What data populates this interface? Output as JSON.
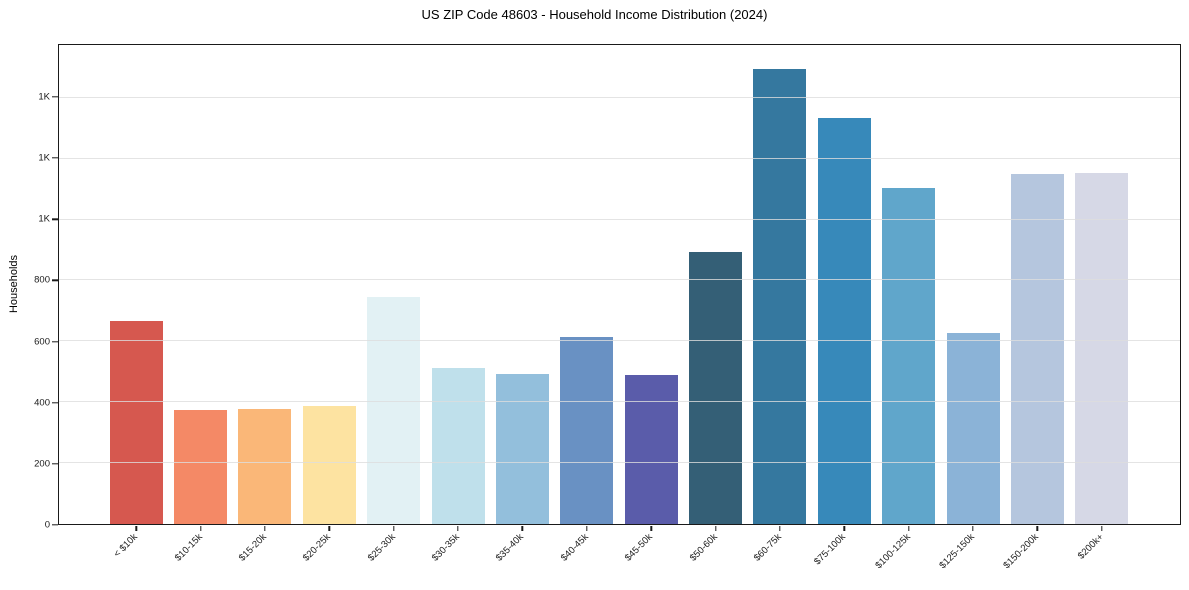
{
  "chart_data": {
    "type": "bar",
    "title": "US ZIP Code 48603 - Household Income Distribution (2024)",
    "xlabel": "",
    "ylabel": "Households",
    "ylim": [
      0,
      1573
    ],
    "grid": "horizontal-only, drawn light over bars",
    "legend": "none",
    "categories": [
      "< $10k",
      "$10-15k",
      "$15-20k",
      "$20-25k",
      "$25-30k",
      "$30-35k",
      "$35-40k",
      "$40-45k",
      "$45-50k",
      "$50-60k",
      "$60-75k",
      "$75-100k",
      "$100-125k",
      "$125-150k",
      "$150-200k",
      "$200k+"
    ],
    "values": [
      667,
      373,
      379,
      389,
      745,
      511,
      494,
      614,
      488,
      892,
      1494,
      1333,
      1103,
      628,
      1150,
      1153
    ],
    "bar_colors": [
      "#d6584f",
      "#f48966",
      "#fab778",
      "#fde3a1",
      "#e2f1f4",
      "#bfe0eb",
      "#93bfdc",
      "#6991c3",
      "#5a5caa",
      "#345f76",
      "#35789f",
      "#3789ba",
      "#60a6cb",
      "#8bb3d7",
      "#b5c6de",
      "#d6d8e6"
    ],
    "yticks": [
      {
        "value": 0,
        "label": "0"
      },
      {
        "value": 200,
        "label": "200"
      },
      {
        "value": 400,
        "label": "400"
      },
      {
        "value": 600,
        "label": "600"
      },
      {
        "value": 800,
        "label": "800"
      },
      {
        "value": 1000,
        "label": "1K"
      },
      {
        "value": 1200,
        "label": "1K"
      },
      {
        "value": 1400,
        "label": "1K"
      }
    ]
  }
}
